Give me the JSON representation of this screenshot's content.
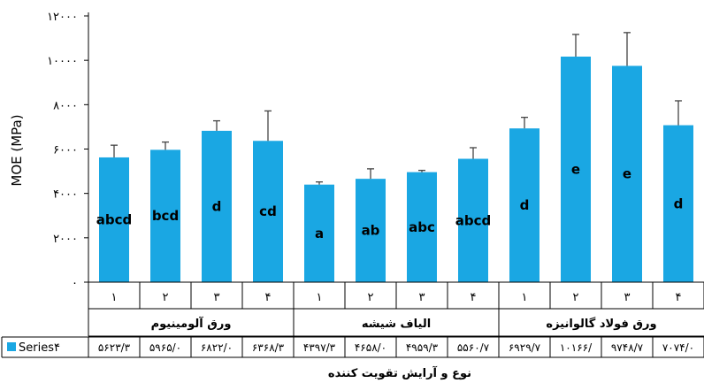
{
  "chart_data": {
    "type": "bar",
    "ylabel": "MOE (MPa)",
    "xlabel": "نوع و آرایش تقویت کننده",
    "ylim": [
      0,
      12000
    ],
    "yticks": [
      0,
      2000,
      4000,
      6000,
      8000,
      10000,
      12000
    ],
    "ytick_labels": [
      "۰",
      "۲۰۰۰",
      "۴۰۰۰",
      "۶۰۰۰",
      "۸۰۰۰",
      "۱۰۰۰۰",
      "۱۲۰۰۰"
    ],
    "grid": false,
    "bar_color": "#1aa7e3",
    "groups": [
      {
        "label": "ورق آلومینیوم",
        "categories": [
          "۱",
          "۲",
          "۳",
          "۴"
        ]
      },
      {
        "label": "الیاف شیشه",
        "categories": [
          "۱",
          "۲",
          "۳",
          "۴"
        ]
      },
      {
        "label": "ورق فولاد گالوانیزه",
        "categories": [
          "۱",
          "۲",
          "۳",
          "۴"
        ]
      }
    ],
    "series": [
      {
        "name": "Series۴",
        "values": [
          5623.3,
          5965.0,
          6822.0,
          6368.3,
          4397.3,
          4658.0,
          4959.3,
          5560.7,
          6929.7,
          10166.0,
          9748.7,
          7074.0
        ],
        "errors": [
          550,
          350,
          450,
          1350,
          120,
          450,
          80,
          500,
          500,
          1000,
          1500,
          1100
        ],
        "letters": [
          "abcd",
          "bcd",
          "d",
          "cd",
          "a",
          "ab",
          "abc",
          "abcd",
          "d",
          "e",
          "e",
          "d"
        ],
        "table_values": [
          "۵۶۲۳/۳",
          "۵۹۶۵/۰",
          "۶۸۲۲/۰",
          "۶۳۶۸/۳",
          "۴۳۹۷/۳",
          "۴۶۵۸/۰",
          "۴۹۵۹/۳",
          "۵۵۶۰/۷",
          "۶۹۲۹/۷",
          "۱۰۱۶۶/",
          "۹۷۴۸/۷",
          "۷۰۷۴/۰"
        ]
      }
    ],
    "legend": "bottom-table"
  }
}
